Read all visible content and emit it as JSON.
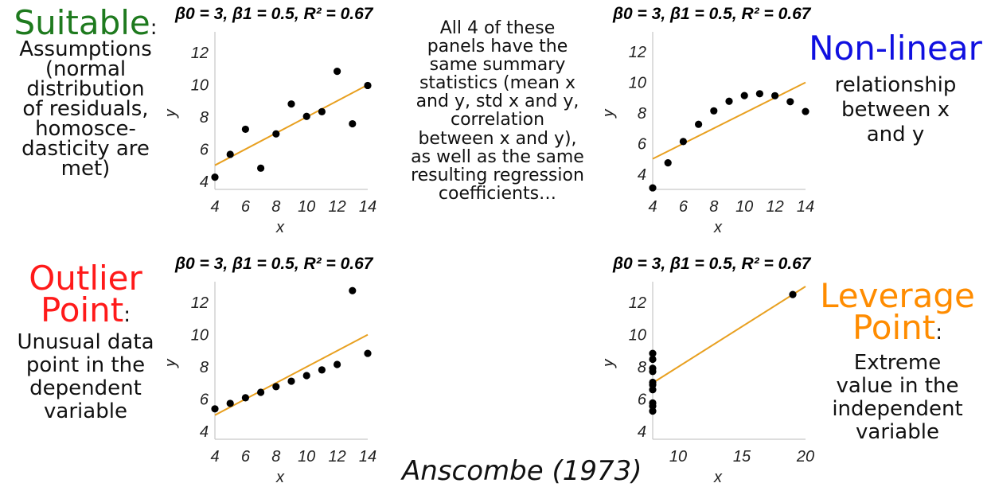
{
  "labels": {
    "suitable_head": "Suitable",
    "suitable_colon": ":",
    "suitable_body": [
      "Assumptions",
      "(normal",
      "distribution",
      "of residuals,",
      "homosce-",
      "dasticity are",
      "met)"
    ],
    "nonlinear_head": "Non-linear",
    "nonlinear_body": [
      "relationship",
      "between x",
      "and y"
    ],
    "outlier_head": [
      "Outlier",
      "Point"
    ],
    "outlier_colon": ":",
    "outlier_body": [
      "Unusual data",
      "point in the",
      "dependent",
      "variable"
    ],
    "leverage_head": [
      "Leverage",
      "Point"
    ],
    "leverage_colon": ":",
    "leverage_body": [
      "Extreme",
      "value in the",
      "independent",
      "variable"
    ],
    "middle_text": [
      "All 4 of these",
      "panels have the",
      "same summary",
      "statistics (mean x",
      "and y, std x and y,",
      "correlation",
      "between x and y),",
      "as well as the same",
      "resulting regression",
      "coefficients…"
    ],
    "citation": "Anscombe (1973)"
  },
  "colors": {
    "suitable": "#1e7a1e",
    "nonlinear": "#1010e0",
    "outlier": "#ff1a1a",
    "leverage": "#ff8c00",
    "fit_line": "#e8a020",
    "points": "#000000"
  },
  "chart_data": [
    {
      "type": "scatter",
      "title": "β0 = 3, β1 = 0.5, R² = 0.67",
      "xlabel": "x",
      "ylabel": "y",
      "xlim": [
        4,
        14
      ],
      "ylim": [
        3.5,
        13
      ],
      "xticks": [
        4,
        6,
        8,
        10,
        12,
        14
      ],
      "yticks": [
        4,
        6,
        8,
        10,
        12
      ],
      "fit": {
        "intercept": 3,
        "slope": 0.5
      },
      "points": [
        [
          4,
          4.26
        ],
        [
          5,
          5.68
        ],
        [
          6,
          7.24
        ],
        [
          7,
          4.82
        ],
        [
          8,
          6.95
        ],
        [
          9,
          8.81
        ],
        [
          10,
          8.04
        ],
        [
          11,
          8.33
        ],
        [
          12,
          10.84
        ],
        [
          13,
          7.58
        ],
        [
          14,
          9.96
        ]
      ]
    },
    {
      "type": "scatter",
      "title": "β0 = 3, β1 = 0.5, R² = 0.67",
      "xlabel": "x",
      "ylabel": "y",
      "xlim": [
        4,
        14
      ],
      "ylim": [
        3.0,
        13
      ],
      "xticks": [
        4,
        6,
        8,
        10,
        12,
        14
      ],
      "yticks": [
        4,
        6,
        8,
        10,
        12
      ],
      "fit": {
        "intercept": 3,
        "slope": 0.5
      },
      "points": [
        [
          4,
          3.1
        ],
        [
          5,
          4.74
        ],
        [
          6,
          6.13
        ],
        [
          7,
          7.26
        ],
        [
          8,
          8.14
        ],
        [
          9,
          8.77
        ],
        [
          10,
          9.14
        ],
        [
          11,
          9.26
        ],
        [
          12,
          9.13
        ],
        [
          13,
          8.74
        ],
        [
          14,
          8.1
        ]
      ]
    },
    {
      "type": "scatter",
      "title": "β0 = 3, β1 = 0.5, R² = 0.67",
      "xlabel": "x",
      "ylabel": "y",
      "xlim": [
        4,
        14
      ],
      "ylim": [
        3.5,
        13
      ],
      "xticks": [
        4,
        6,
        8,
        10,
        12,
        14
      ],
      "yticks": [
        4,
        6,
        8,
        10,
        12
      ],
      "fit": {
        "intercept": 3,
        "slope": 0.5
      },
      "points": [
        [
          4,
          5.39
        ],
        [
          5,
          5.73
        ],
        [
          6,
          6.08
        ],
        [
          7,
          6.42
        ],
        [
          8,
          6.77
        ],
        [
          9,
          7.11
        ],
        [
          10,
          7.46
        ],
        [
          11,
          7.81
        ],
        [
          12,
          8.15
        ],
        [
          13,
          12.74
        ],
        [
          14,
          8.84
        ]
      ]
    },
    {
      "type": "scatter",
      "title": "β0 = 3, β1 = 0.5, R² = 0.67",
      "xlabel": "x",
      "ylabel": "y",
      "xlim": [
        8,
        20
      ],
      "ylim": [
        3.5,
        13
      ],
      "xticks": [
        10,
        15,
        20
      ],
      "yticks": [
        4,
        6,
        8,
        10,
        12
      ],
      "fit": {
        "intercept": 3,
        "slope": 0.5
      },
      "points": [
        [
          8,
          5.25
        ],
        [
          8,
          5.56
        ],
        [
          8,
          5.76
        ],
        [
          8,
          6.58
        ],
        [
          8,
          6.89
        ],
        [
          8,
          7.04
        ],
        [
          8,
          7.71
        ],
        [
          8,
          7.91
        ],
        [
          8,
          8.47
        ],
        [
          8,
          8.84
        ],
        [
          19,
          12.5
        ]
      ]
    }
  ]
}
